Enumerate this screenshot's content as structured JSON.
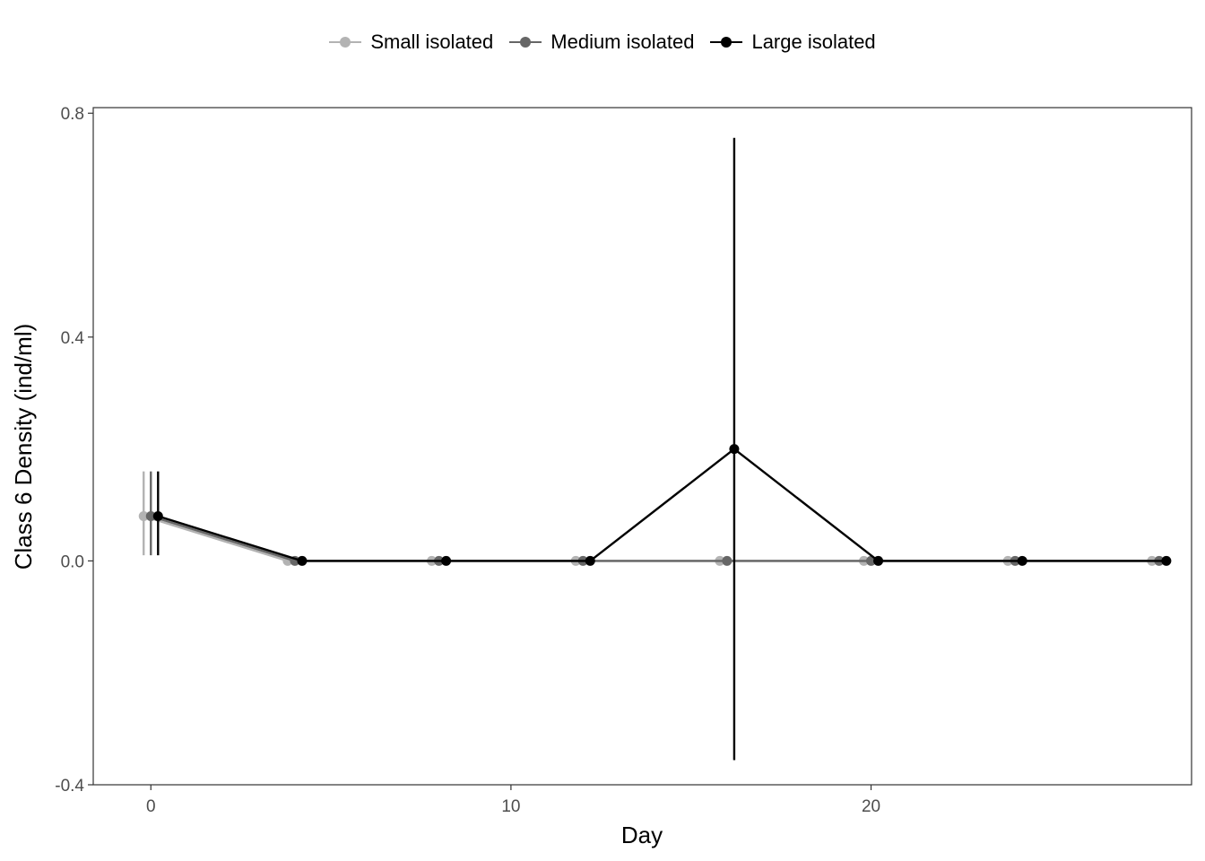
{
  "chart_data": {
    "type": "line",
    "xlabel": "Day",
    "ylabel": "Class 6 Density (ind/ml)",
    "xlim": [
      -1.6,
      28.9
    ],
    "ylim": [
      -0.4,
      0.81
    ],
    "x_ticks": [
      0,
      10,
      20
    ],
    "y_ticks": [
      -0.4,
      0.0,
      0.4,
      0.8
    ],
    "y_tick_labels": [
      "-0.4",
      "0.0",
      "0.4",
      "0.8"
    ],
    "grid": false,
    "legend_position": "top",
    "error_bars": true,
    "series": [
      {
        "name": "Small isolated",
        "color": "#b3b3b3",
        "dodge": -0.2,
        "x": [
          0,
          4,
          8,
          12,
          16,
          20,
          24,
          28
        ],
        "y": [
          0.08,
          0.0,
          0.0,
          0.0,
          0.0,
          0.0,
          0.0,
          0.0
        ],
        "err_low": [
          0.01,
          null,
          null,
          null,
          null,
          null,
          null,
          null
        ],
        "err_high": [
          0.16,
          null,
          null,
          null,
          null,
          null,
          null,
          null
        ]
      },
      {
        "name": "Medium isolated",
        "color": "#666666",
        "dodge": 0.0,
        "x": [
          0,
          4,
          8,
          12,
          16,
          20,
          24,
          28
        ],
        "y": [
          0.08,
          0.0,
          0.0,
          0.0,
          0.0,
          0.0,
          0.0,
          0.0
        ],
        "err_low": [
          0.01,
          null,
          null,
          null,
          null,
          null,
          null,
          null
        ],
        "err_high": [
          0.16,
          null,
          null,
          null,
          null,
          null,
          null,
          null
        ]
      },
      {
        "name": "Large isolated",
        "color": "#000000",
        "dodge": 0.2,
        "x": [
          0,
          4,
          8,
          12,
          16,
          20,
          24,
          28
        ],
        "y": [
          0.08,
          0.0,
          0.0,
          0.0,
          0.2,
          0.0,
          0.0,
          0.0
        ],
        "err_low": [
          0.01,
          null,
          null,
          null,
          -0.356,
          null,
          null,
          null
        ],
        "err_high": [
          0.16,
          null,
          null,
          null,
          0.756,
          null,
          null,
          null
        ]
      }
    ]
  }
}
